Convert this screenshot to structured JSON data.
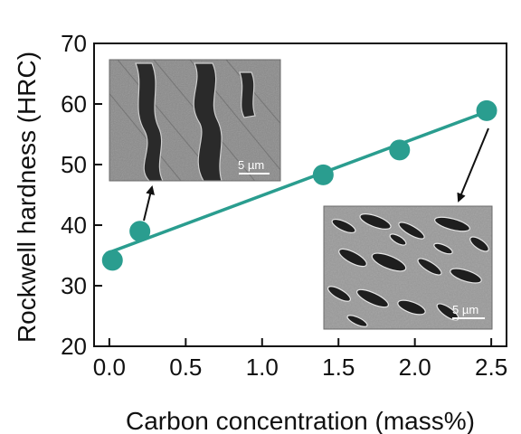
{
  "chart_data": {
    "type": "scatter",
    "xlabel": "Carbon concentration (mass%)",
    "ylabel": "Rockwell hardness (HRC)",
    "xlim": [
      -0.1,
      2.6
    ],
    "ylim": [
      20,
      70
    ],
    "x_ticks": [
      "0.0",
      "0.5",
      "1.0",
      "1.5",
      "2.0",
      "2.5"
    ],
    "y_ticks": [
      "20",
      "30",
      "40",
      "50",
      "60",
      "70"
    ],
    "grid": false,
    "legend": "none",
    "series": [
      {
        "x": [
          0.02,
          0.2,
          1.4,
          1.9,
          2.47
        ],
        "y": [
          34.2,
          39.0,
          48.3,
          52.4,
          58.9
        ]
      }
    ],
    "fit_line": {
      "x": [
        0.0,
        2.5
      ],
      "y": [
        35.5,
        59.0
      ]
    },
    "marker_color": "#2a9d8f",
    "line_color": "#2a9d8f",
    "insets": [
      {
        "kind": "micrograph-lamellar",
        "scale_bar": "5 µm",
        "points_to_index": 1
      },
      {
        "kind": "micrograph-carbides",
        "scale_bar": "5 µm",
        "points_to_index": 4
      }
    ]
  }
}
